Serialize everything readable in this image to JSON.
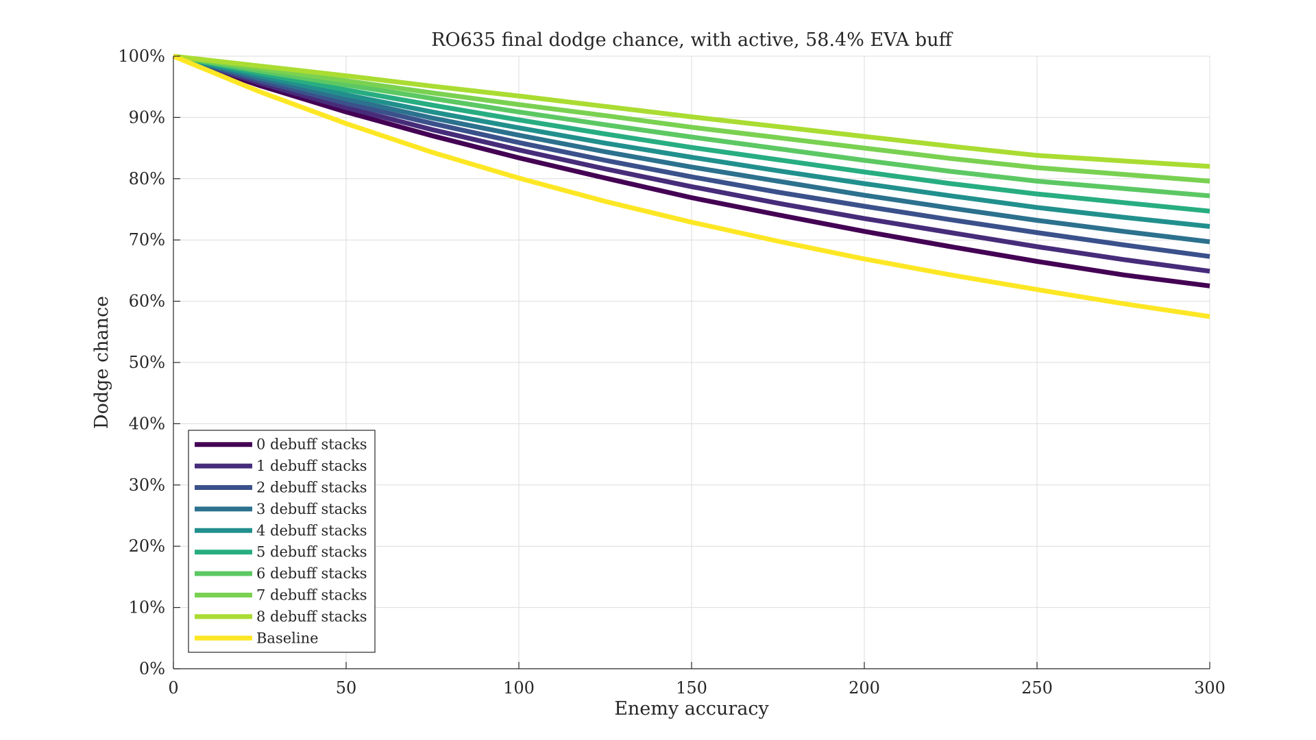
{
  "chart_data": {
    "type": "line",
    "title": "RO635 final dodge chance, with active, 58.4% EVA buff",
    "xlabel": "Enemy accuracy",
    "ylabel": "Dodge chance",
    "xlim": [
      0,
      300
    ],
    "ylim": [
      0,
      100
    ],
    "x_ticks": [
      0,
      50,
      100,
      150,
      200,
      250,
      300
    ],
    "x_tick_labels": [
      "0",
      "50",
      "100",
      "150",
      "200",
      "250",
      "300"
    ],
    "y_ticks": [
      0,
      10,
      20,
      30,
      40,
      50,
      60,
      70,
      80,
      90,
      100
    ],
    "y_tick_labels": [
      "0%",
      "10%",
      "20%",
      "30%",
      "40%",
      "50%",
      "60%",
      "70%",
      "80%",
      "90%",
      "100%"
    ],
    "grid": true,
    "legend_position": "bottom-left",
    "x": [
      0,
      25,
      50,
      75,
      100,
      125,
      150,
      175,
      200,
      225,
      250,
      275,
      300
    ],
    "series": [
      {
        "name": "0 debuff stacks",
        "color": "#440154",
        "values": [
          100,
          95.2,
          90.9,
          87.0,
          83.4,
          80.1,
          76.9,
          74.1,
          71.4,
          68.9,
          66.5,
          64.3,
          62.5
        ]
      },
      {
        "name": "1 debuff stacks",
        "color": "#472c7a",
        "values": [
          100,
          95.6,
          91.6,
          88.0,
          84.7,
          81.6,
          78.7,
          76.0,
          73.5,
          71.2,
          68.9,
          66.8,
          64.9
        ]
      },
      {
        "name": "2 debuff stacks",
        "color": "#3b518b",
        "values": [
          100,
          96.0,
          92.3,
          89.0,
          85.9,
          83.0,
          80.3,
          77.8,
          75.5,
          73.3,
          71.2,
          69.2,
          67.3
        ]
      },
      {
        "name": "3 debuff stacks",
        "color": "#2c718e",
        "values": [
          100,
          96.4,
          93.0,
          89.9,
          87.1,
          84.4,
          81.9,
          79.6,
          77.3,
          75.2,
          73.2,
          71.4,
          69.7
        ]
      },
      {
        "name": "4 debuff stacks",
        "color": "#21908d",
        "values": [
          100,
          96.8,
          93.7,
          90.9,
          88.3,
          85.8,
          83.5,
          81.3,
          79.2,
          77.2,
          75.3,
          73.7,
          72.2
        ]
      },
      {
        "name": "5 debuff stacks",
        "color": "#27ad81",
        "values": [
          100,
          97.2,
          94.5,
          92.0,
          89.6,
          87.3,
          85.1,
          83.1,
          81.1,
          79.2,
          77.5,
          76.1,
          74.7
        ]
      },
      {
        "name": "6 debuff stacks",
        "color": "#5cc863",
        "values": [
          100,
          97.6,
          95.3,
          93.1,
          90.9,
          88.8,
          86.8,
          84.9,
          83.0,
          81.2,
          79.6,
          78.4,
          77.2
        ]
      },
      {
        "name": "7 debuff stacks",
        "color": "#7ad151",
        "values": [
          100,
          98.0,
          96.0,
          94.0,
          92.1,
          90.3,
          88.4,
          86.7,
          85.0,
          83.3,
          81.8,
          80.7,
          79.6
        ]
      },
      {
        "name": "8 debuff stacks",
        "color": "#aadc32",
        "values": [
          100,
          98.4,
          96.8,
          95.1,
          93.5,
          91.8,
          90.1,
          88.5,
          86.9,
          85.3,
          83.8,
          82.9,
          82.0
        ]
      },
      {
        "name": "Baseline",
        "color": "#fde725",
        "values": [
          100,
          94.2,
          89.0,
          84.3,
          80.1,
          76.3,
          72.9,
          69.8,
          66.9,
          64.3,
          61.9,
          59.6,
          57.5
        ]
      }
    ]
  }
}
